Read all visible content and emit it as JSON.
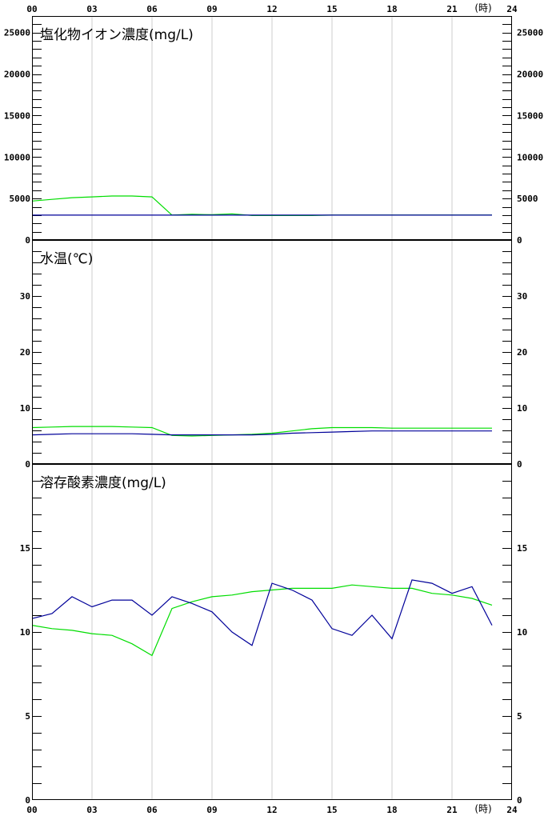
{
  "x_axis": {
    "hour_labels": [
      "00",
      "03",
      "06",
      "09",
      "12",
      "15",
      "18",
      "21",
      "24"
    ],
    "unit_label": "(時)"
  },
  "colors": {
    "series_a": "#00dd00",
    "series_b": "#000099",
    "grid": "#cccccc",
    "frame": "#000000"
  },
  "chart_data": [
    {
      "type": "line",
      "title": "塩化物イオン濃度(mg/L)",
      "x": [
        0,
        1,
        2,
        3,
        4,
        5,
        6,
        7,
        8,
        9,
        10,
        11,
        12,
        13,
        14,
        15,
        16,
        17,
        18,
        19,
        20,
        21,
        22,
        23
      ],
      "ylim": [
        0,
        27000
      ],
      "yticks": [
        0,
        5000,
        10000,
        15000,
        20000,
        25000
      ],
      "minor_step": 1000,
      "grid": true,
      "series": [
        {
          "values": [
            4700,
            4900,
            5100,
            5200,
            5300,
            5300,
            5200,
            3000,
            3100,
            3050,
            3150,
            2950,
            2950,
            2950,
            2950,
            3000,
            3000,
            3000,
            3000,
            3000,
            3000,
            3000,
            3000,
            3000
          ]
        },
        {
          "values": [
            3000,
            3000,
            3000,
            3000,
            3000,
            3000,
            3000,
            3000,
            3000,
            3000,
            3000,
            3000,
            3000,
            3000,
            3000,
            3000,
            3000,
            3000,
            3000,
            3000,
            3000,
            3000,
            3000,
            3000
          ]
        }
      ]
    },
    {
      "type": "line",
      "title": "水温(℃)",
      "x": [
        0,
        1,
        2,
        3,
        4,
        5,
        6,
        7,
        8,
        9,
        10,
        11,
        12,
        13,
        14,
        15,
        16,
        17,
        18,
        19,
        20,
        21,
        22,
        23
      ],
      "ylim": [
        0,
        40
      ],
      "yticks": [
        0,
        10,
        20,
        30
      ],
      "minor_step": 2,
      "grid": true,
      "series": [
        {
          "values": [
            6.5,
            6.6,
            6.7,
            6.7,
            6.7,
            6.6,
            6.5,
            5.1,
            5.0,
            5.1,
            5.2,
            5.3,
            5.5,
            5.9,
            6.3,
            6.5,
            6.5,
            6.5,
            6.4,
            6.4,
            6.4,
            6.4,
            6.4,
            6.4
          ]
        },
        {
          "values": [
            5.2,
            5.3,
            5.4,
            5.4,
            5.4,
            5.4,
            5.3,
            5.2,
            5.2,
            5.2,
            5.2,
            5.2,
            5.3,
            5.5,
            5.6,
            5.7,
            5.8,
            5.9,
            5.9,
            5.9,
            5.9,
            5.9,
            5.9,
            5.9
          ]
        }
      ]
    },
    {
      "type": "line",
      "title": "溶存酸素濃度(mg/L)",
      "x": [
        0,
        1,
        2,
        3,
        4,
        5,
        6,
        7,
        8,
        9,
        10,
        11,
        12,
        13,
        14,
        15,
        16,
        17,
        18,
        19,
        20,
        21,
        22,
        23
      ],
      "ylim": [
        0,
        20
      ],
      "yticks": [
        0,
        5,
        10,
        15
      ],
      "minor_step": 1,
      "grid": true,
      "series": [
        {
          "values": [
            10.4,
            10.2,
            10.1,
            9.9,
            9.8,
            9.3,
            8.6,
            11.4,
            11.8,
            12.1,
            12.2,
            12.4,
            12.5,
            12.6,
            12.6,
            12.6,
            12.8,
            12.7,
            12.6,
            12.6,
            12.3,
            12.2,
            12.0,
            11.6
          ]
        },
        {
          "values": [
            10.8,
            11.1,
            12.1,
            11.5,
            11.9,
            11.9,
            11.0,
            12.1,
            11.7,
            11.2,
            10.0,
            9.2,
            12.9,
            12.5,
            11.9,
            10.2,
            9.8,
            11.0,
            9.6,
            13.1,
            12.9,
            12.3,
            12.7,
            10.4
          ]
        }
      ]
    }
  ]
}
